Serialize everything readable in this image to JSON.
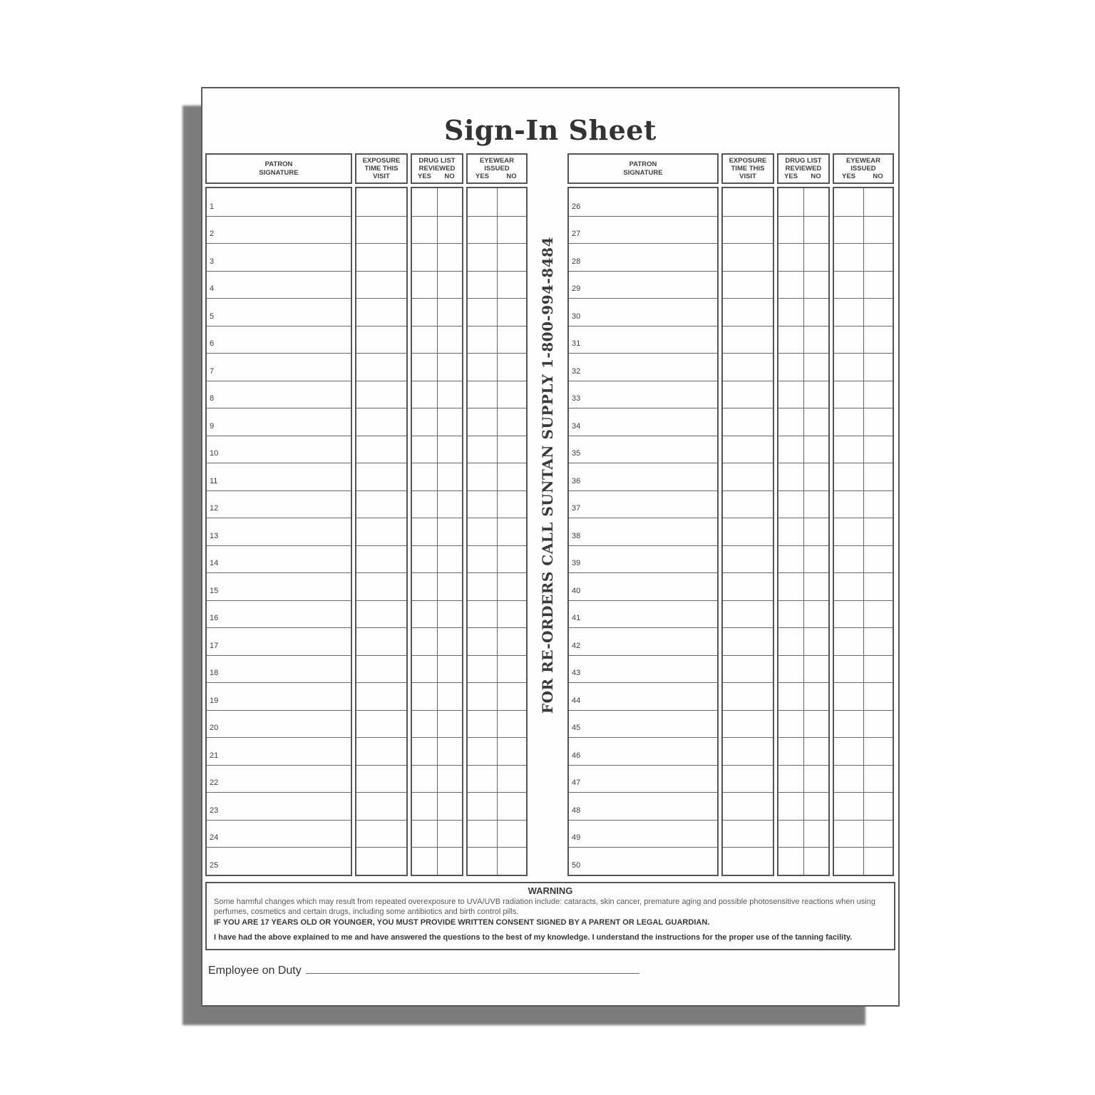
{
  "page": {
    "title": "Sign-In Sheet"
  },
  "reorder_note": "FOR RE-ORDERS CALL SUNTAN SUPPLY 1-800-994-8484",
  "table_header": {
    "patron": "PATRON\nSIGNATURE",
    "exposure": "EXPOSURE\nTIME THIS\nVISIT",
    "drug": "DRUG LIST\nREVIEWED",
    "eyewear": "EYEWEAR\nISSUED",
    "yes": "YES",
    "no": "NO"
  },
  "tables": {
    "left_rows": [
      1,
      2,
      3,
      4,
      5,
      6,
      7,
      8,
      9,
      10,
      11,
      12,
      13,
      14,
      15,
      16,
      17,
      18,
      19,
      20,
      21,
      22,
      23,
      24,
      25
    ],
    "right_rows": [
      26,
      27,
      28,
      29,
      30,
      31,
      32,
      33,
      34,
      35,
      36,
      37,
      38,
      39,
      40,
      41,
      42,
      43,
      44,
      45,
      46,
      47,
      48,
      49,
      50
    ]
  },
  "warning": {
    "title": "WARNING",
    "line1": "Some harmful changes which may result from repeated overexposure to UVA/UVB radiation include: cataracts, skin cancer, premature aging and possible photosensitive reactions when using perfumes, cosmetics and certain drugs, including some antibiotics and birth control pills.",
    "line2": "IF YOU ARE 17 YEARS OLD OR YOUNGER, YOU MUST PROVIDE WRITTEN CONSENT SIGNED BY A PARENT OR LEGAL GUARDIAN.",
    "line3": "I have had the above explained to me and have answered the questions to the best of my knowledge. I understand the instructions for the proper use of the tanning facility."
  },
  "footer": {
    "employee_label": "Employee on Duty"
  },
  "colors": {
    "ink": "#3c3c3c",
    "border": "#555555",
    "shadow": "#7d7d7d"
  }
}
